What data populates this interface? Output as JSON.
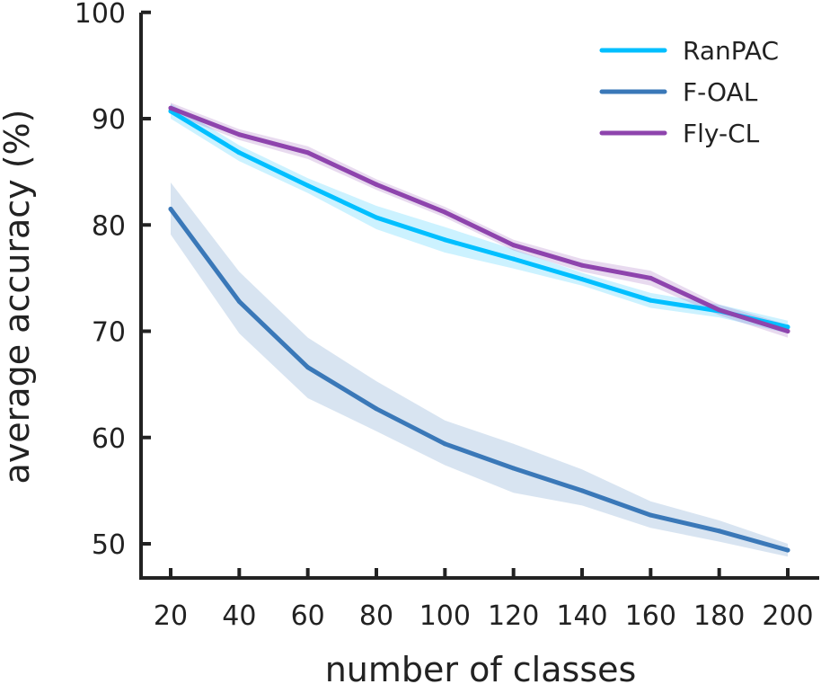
{
  "chart_data": {
    "type": "line",
    "title": "",
    "xlabel": "number of classes",
    "ylabel": "average accuracy (%)",
    "x": [
      20,
      40,
      60,
      80,
      100,
      120,
      140,
      160,
      180,
      200
    ],
    "xticks": [
      "20",
      "40",
      "60",
      "80",
      "100",
      "120",
      "140",
      "160",
      "180",
      "200"
    ],
    "yticks": [
      "50",
      "60",
      "70",
      "80",
      "90",
      "100"
    ],
    "ylim": [
      48,
      100
    ],
    "grid": false,
    "legend_position": "top-right",
    "series": [
      {
        "name": "RanPAC",
        "color": "#00BFFF",
        "values": [
          90.7,
          86.8,
          83.7,
          80.7,
          78.6,
          76.8,
          74.9,
          72.9,
          71.9,
          70.4
        ],
        "lower": [
          90.0,
          86.0,
          83.0,
          79.6,
          77.4,
          75.9,
          74.3,
          72.2,
          71.3,
          69.8
        ],
        "upper": [
          91.4,
          87.5,
          84.4,
          81.8,
          79.8,
          77.7,
          75.5,
          73.6,
          72.5,
          71.0
        ]
      },
      {
        "name": "F-OAL",
        "color": "#3A78B8",
        "values": [
          81.5,
          72.8,
          66.6,
          62.7,
          59.4,
          57.1,
          55.0,
          52.7,
          51.2,
          49.4
        ],
        "lower": [
          79.1,
          69.8,
          63.7,
          60.6,
          57.4,
          54.8,
          53.6,
          51.5,
          50.2,
          48.8
        ],
        "upper": [
          84.0,
          75.6,
          69.4,
          65.3,
          61.6,
          59.4,
          57.0,
          54.0,
          52.2,
          50.0
        ]
      },
      {
        "name": "Fly-CL",
        "color": "#8E44AD",
        "values": [
          91.0,
          88.5,
          86.8,
          83.8,
          81.2,
          78.1,
          76.2,
          75.0,
          72.0,
          70.0
        ],
        "lower": [
          90.5,
          88.0,
          86.2,
          83.3,
          80.7,
          77.6,
          75.6,
          74.3,
          71.5,
          69.4
        ],
        "upper": [
          91.5,
          89.0,
          87.4,
          84.3,
          81.7,
          78.6,
          76.8,
          75.7,
          72.5,
          70.6
        ]
      }
    ]
  }
}
